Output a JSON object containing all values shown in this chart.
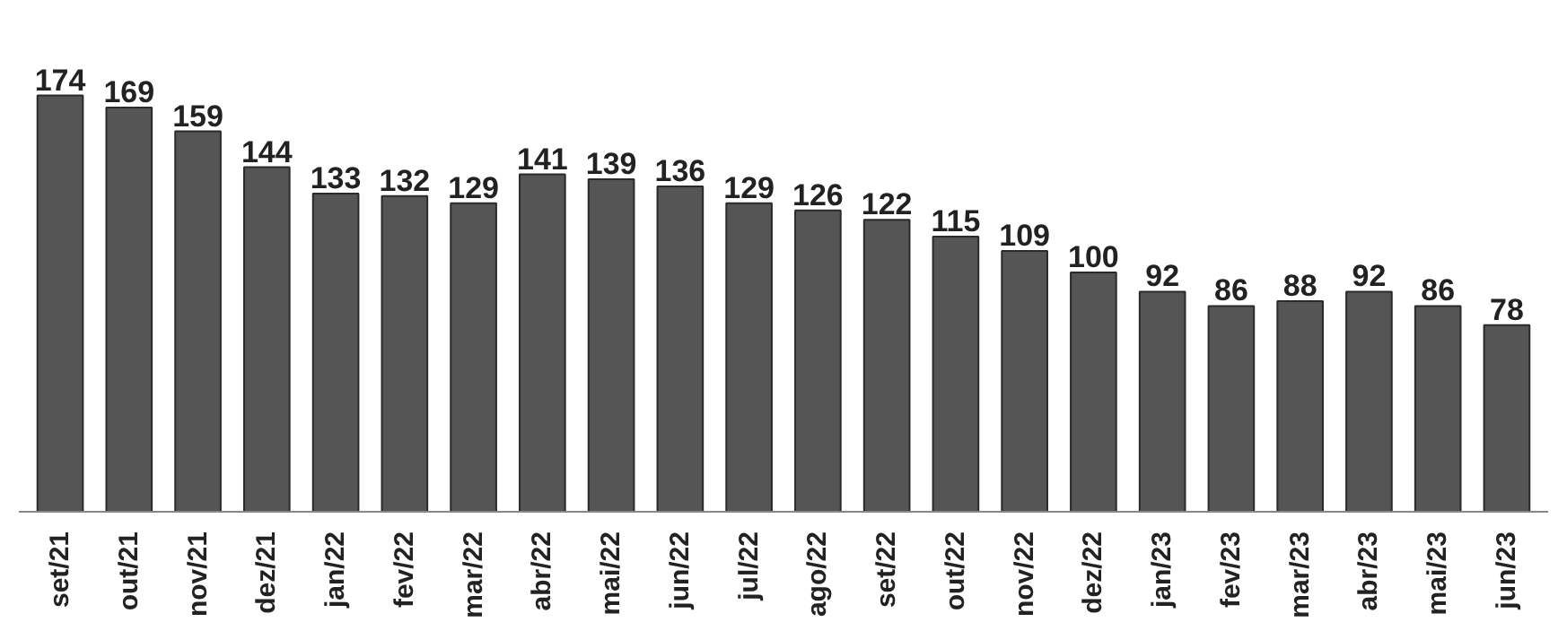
{
  "chart_data": {
    "type": "bar",
    "categories": [
      "set/21",
      "out/21",
      "nov/21",
      "dez/21",
      "jan/22",
      "fev/22",
      "mar/22",
      "abr/22",
      "mai/22",
      "jun/22",
      "jul/22",
      "ago/22",
      "set/22",
      "out/22",
      "nov/22",
      "dez/22",
      "jan/23",
      "fev/23",
      "mar/23",
      "abr/23",
      "mai/23",
      "jun/23"
    ],
    "values": [
      174,
      169,
      159,
      144,
      133,
      132,
      129,
      141,
      139,
      136,
      129,
      126,
      122,
      115,
      109,
      100,
      92,
      86,
      88,
      92,
      86,
      78
    ],
    "color": "#555555",
    "data_labels": true,
    "tick_labels": "x"
  }
}
